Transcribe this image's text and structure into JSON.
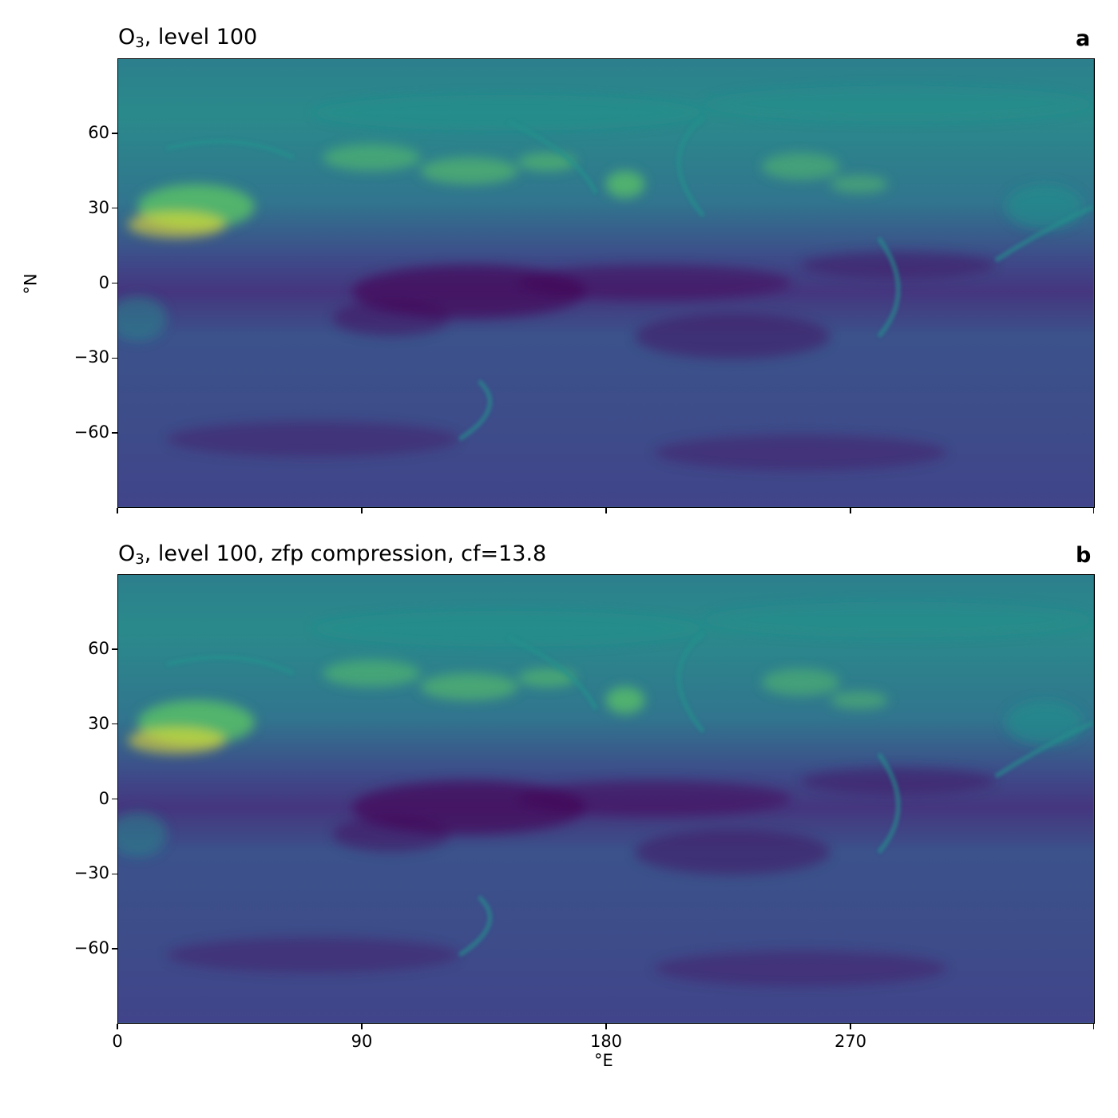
{
  "chart_data": [
    {
      "type": "heatmap",
      "panel_letter": "a",
      "title_main": "O",
      "title_sub": "3",
      "title_rest": ", level 100",
      "xlabel": "",
      "ylabel": "°N",
      "xlim": [
        0,
        360
      ],
      "ylim": [
        -90,
        90
      ],
      "xticks": [
        0,
        90,
        180,
        270,
        360
      ],
      "xtick_labels": [],
      "yticks": [
        60,
        30,
        0,
        -30,
        -60
      ],
      "ytick_labels": [
        "60",
        "30",
        "0",
        "−30",
        "−60"
      ],
      "colormap": "viridis"
    },
    {
      "type": "heatmap",
      "panel_letter": "b",
      "title_main": "O",
      "title_sub": "3",
      "title_rest": ", level 100, zfp compression, cf=13.8",
      "xlabel": "°E",
      "ylabel": "",
      "xlim": [
        0,
        360
      ],
      "ylim": [
        -90,
        90
      ],
      "xticks": [
        0,
        90,
        180,
        270,
        360
      ],
      "xtick_labels": [
        "0",
        "90",
        "180",
        "270"
      ],
      "yticks": [
        60,
        30,
        0,
        -30,
        -60
      ],
      "ytick_labels": [
        "60",
        "30",
        "0",
        "−30",
        "−60"
      ],
      "colormap": "viridis"
    }
  ],
  "colors": {
    "viridis_low": "#440154",
    "viridis_midlow": "#3b528b",
    "viridis_mid": "#21918c",
    "viridis_midhigh": "#5ec962",
    "viridis_high": "#fde725"
  }
}
